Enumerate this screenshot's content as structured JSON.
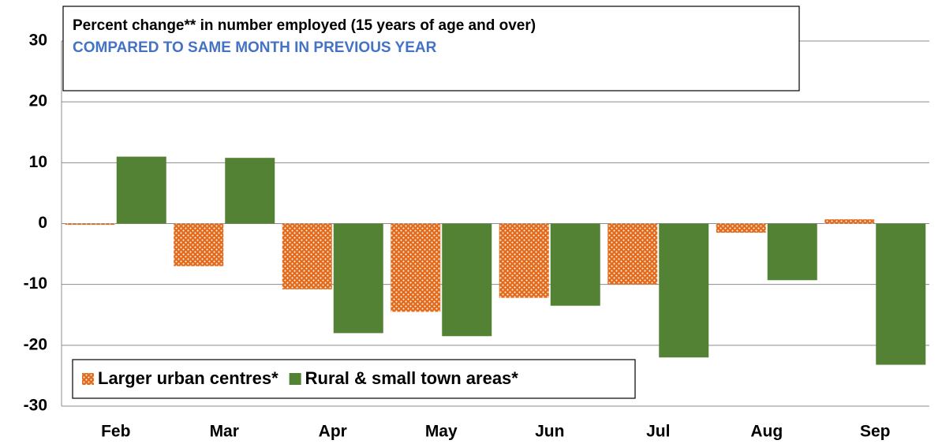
{
  "chart_data": {
    "type": "bar",
    "title": "Percent change** in number employed (15 years of age and over)",
    "subtitle": "COMPARED TO SAME MONTH IN PREVIOUS YEAR",
    "categories": [
      "Feb",
      "Mar",
      "Apr",
      "May",
      "Jun",
      "Jul",
      "Aug",
      "Sep"
    ],
    "series": [
      {
        "name": "Larger urban centres*",
        "color": "#e36c1c",
        "pattern": "dots",
        "values": [
          -0.2,
          -7.0,
          -10.8,
          -14.5,
          -12.2,
          -10.0,
          -1.5,
          0.7
        ]
      },
      {
        "name": "Rural & small town areas*",
        "color": "#548235",
        "values": [
          11.0,
          10.8,
          -18.0,
          -18.5,
          -13.5,
          -22.0,
          -9.3,
          -23.2
        ]
      }
    ],
    "ylim": [
      -30,
      30
    ],
    "yticks": [
      -30,
      -20,
      -10,
      0,
      10,
      20,
      30
    ],
    "grid": true,
    "legend": "lower left"
  }
}
